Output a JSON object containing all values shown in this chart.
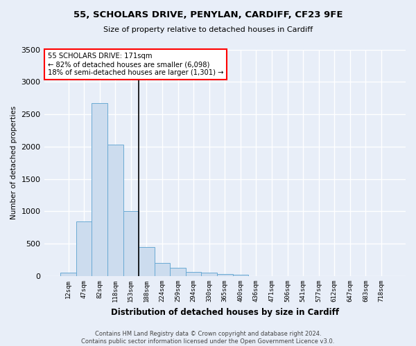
{
  "title1": "55, SCHOLARS DRIVE, PENYLAN, CARDIFF, CF23 9FE",
  "title2": "Size of property relative to detached houses in Cardiff",
  "xlabel": "Distribution of detached houses by size in Cardiff",
  "ylabel": "Number of detached properties",
  "footer1": "Contains HM Land Registry data © Crown copyright and database right 2024.",
  "footer2": "Contains public sector information licensed under the Open Government Licence v3.0.",
  "categories": [
    "12sqm",
    "47sqm",
    "82sqm",
    "118sqm",
    "153sqm",
    "188sqm",
    "224sqm",
    "259sqm",
    "294sqm",
    "330sqm",
    "365sqm",
    "400sqm",
    "436sqm",
    "471sqm",
    "506sqm",
    "541sqm",
    "577sqm",
    "612sqm",
    "647sqm",
    "683sqm",
    "718sqm"
  ],
  "values": [
    55,
    840,
    2670,
    2030,
    1000,
    450,
    205,
    130,
    65,
    50,
    30,
    25,
    0,
    0,
    0,
    0,
    0,
    0,
    0,
    0,
    0
  ],
  "bar_color": "#ccdcee",
  "bar_edge_color": "#6aaad4",
  "vline_x": 4.5,
  "annotation_text1": "55 SCHOLARS DRIVE: 171sqm",
  "annotation_text2": "← 82% of detached houses are smaller (6,098)",
  "annotation_text3": "18% of semi-detached houses are larger (1,301) →",
  "annotation_box_facecolor": "white",
  "annotation_box_edgecolor": "red",
  "bg_color": "#e8eef8",
  "grid_color": "white",
  "ylim": [
    0,
    3500
  ],
  "yticks": [
    0,
    500,
    1000,
    1500,
    2000,
    2500,
    3000,
    3500
  ]
}
